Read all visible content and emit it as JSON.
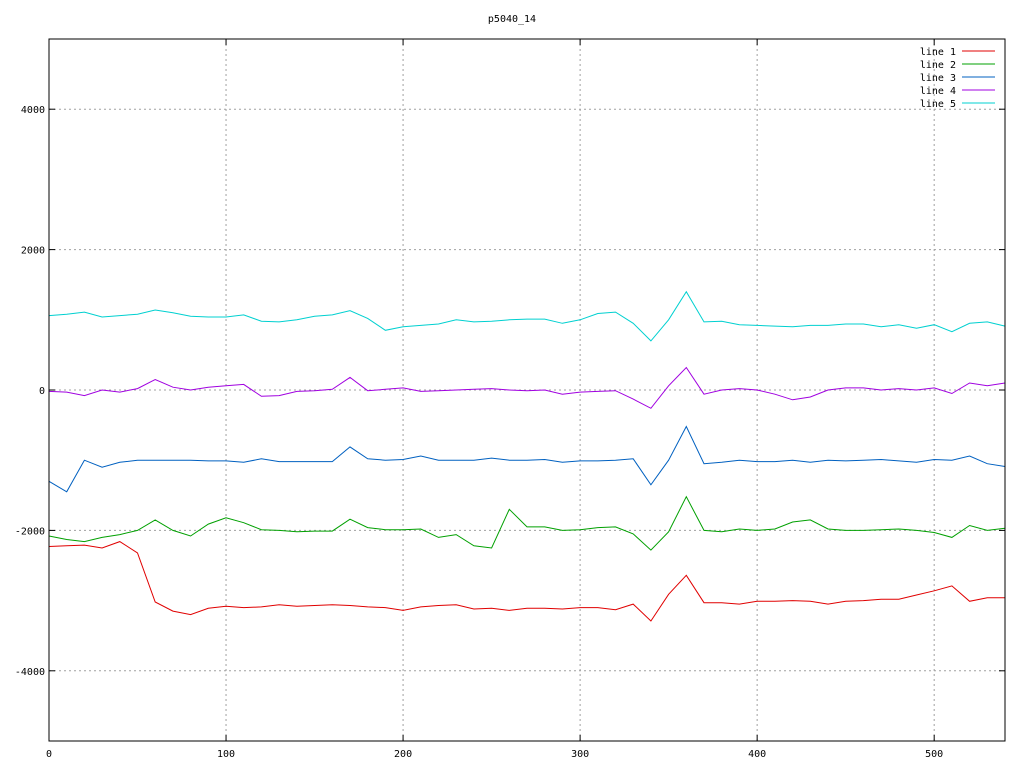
{
  "chart_data": {
    "type": "line",
    "title": "p5040_14",
    "xlabel": "",
    "ylabel": "",
    "xlim": [
      0,
      540
    ],
    "ylim": [
      -5000,
      5000
    ],
    "x_ticks": [
      0,
      100,
      200,
      300,
      400,
      500
    ],
    "y_ticks": [
      -4000,
      -2000,
      0,
      2000,
      4000
    ],
    "grid": true,
    "legend_position": "top-right",
    "x_step": 10,
    "series": [
      {
        "name": "line 1",
        "color": "#e00000",
        "values": [
          -2230,
          -2220,
          -2210,
          -2250,
          -2160,
          -2320,
          -3020,
          -3150,
          -3200,
          -3110,
          -3080,
          -3100,
          -3090,
          -3060,
          -3080,
          -3070,
          -3060,
          -3070,
          -3090,
          -3100,
          -3140,
          -3090,
          -3070,
          -3060,
          -3120,
          -3110,
          -3140,
          -3110,
          -3110,
          -3120,
          -3100,
          -3100,
          -3130,
          -3050,
          -3290,
          -2910,
          -2640,
          -3030,
          -3030,
          -3050,
          -3010,
          -3010,
          -3000,
          -3010,
          -3050,
          -3010,
          -3000,
          -2980,
          -2980,
          -2920,
          -2860,
          -2790,
          -3010,
          -2960,
          -2960
        ]
      },
      {
        "name": "line 2",
        "color": "#00a000",
        "values": [
          -2080,
          -2130,
          -2160,
          -2100,
          -2060,
          -2000,
          -1850,
          -2000,
          -2080,
          -1910,
          -1820,
          -1890,
          -1990,
          -2000,
          -2020,
          -2010,
          -2010,
          -1840,
          -1960,
          -1990,
          -1990,
          -1980,
          -2100,
          -2060,
          -2220,
          -2250,
          -1700,
          -1950,
          -1950,
          -2000,
          -1990,
          -1960,
          -1950,
          -2050,
          -2280,
          -2020,
          -1520,
          -2000,
          -2020,
          -1980,
          -2000,
          -1980,
          -1880,
          -1850,
          -1980,
          -2000,
          -2000,
          -1990,
          -1980,
          -2000,
          -2030,
          -2100,
          -1930,
          -2000,
          -1970
        ]
      },
      {
        "name": "line 3",
        "color": "#0060c0",
        "values": [
          -1300,
          -1450,
          -1000,
          -1100,
          -1030,
          -1000,
          -1000,
          -1000,
          -1000,
          -1010,
          -1010,
          -1030,
          -980,
          -1020,
          -1020,
          -1020,
          -1020,
          -810,
          -980,
          -1000,
          -990,
          -940,
          -1000,
          -1000,
          -1000,
          -970,
          -1000,
          -1000,
          -990,
          -1030,
          -1010,
          -1010,
          -1000,
          -980,
          -1350,
          -1000,
          -520,
          -1050,
          -1030,
          -1000,
          -1020,
          -1020,
          -1000,
          -1030,
          -1000,
          -1010,
          -1000,
          -990,
          -1010,
          -1030,
          -990,
          -1000,
          -940,
          -1050,
          -1090
        ]
      },
      {
        "name": "line 4",
        "color": "#a000e0",
        "values": [
          -20,
          -30,
          -80,
          0,
          -30,
          20,
          150,
          40,
          0,
          40,
          60,
          80,
          -90,
          -80,
          -20,
          -10,
          10,
          180,
          -10,
          10,
          30,
          -20,
          -10,
          0,
          10,
          20,
          0,
          -10,
          0,
          -60,
          -30,
          -20,
          -10,
          -130,
          -260,
          60,
          320,
          -60,
          0,
          20,
          0,
          -60,
          -140,
          -100,
          0,
          30,
          30,
          0,
          20,
          0,
          30,
          -50,
          100,
          60,
          100
        ]
      },
      {
        "name": "line 5",
        "color": "#00d0d0",
        "values": [
          1060,
          1080,
          1110,
          1040,
          1060,
          1080,
          1140,
          1100,
          1050,
          1040,
          1040,
          1070,
          980,
          970,
          1000,
          1050,
          1070,
          1130,
          1020,
          850,
          900,
          920,
          940,
          1000,
          970,
          980,
          1000,
          1010,
          1010,
          950,
          1000,
          1090,
          1110,
          950,
          700,
          1000,
          1400,
          970,
          980,
          930,
          920,
          910,
          900,
          920,
          920,
          940,
          940,
          900,
          930,
          880,
          930,
          830,
          950,
          970,
          910
        ]
      }
    ]
  }
}
